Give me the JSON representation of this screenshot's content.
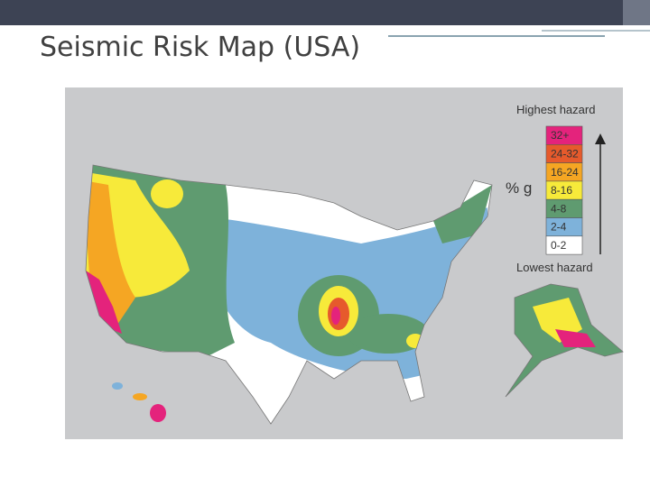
{
  "title": "Seismic Risk Map (USA)",
  "map": {
    "legend": {
      "top_label": "Highest hazard",
      "unit": "% g",
      "bottom_label": "Lowest hazard",
      "items": [
        {
          "label": "32+",
          "color": "#e4237c"
        },
        {
          "label": "24-32",
          "color": "#e65a2c"
        },
        {
          "label": "16-24",
          "color": "#f5a623"
        },
        {
          "label": "8-16",
          "color": "#f7ea3a"
        },
        {
          "label": "4-8",
          "color": "#5f9b70"
        },
        {
          "label": "2-4",
          "color": "#7eb2da"
        },
        {
          "label": "0-2",
          "color": "#ffffff"
        }
      ]
    }
  }
}
